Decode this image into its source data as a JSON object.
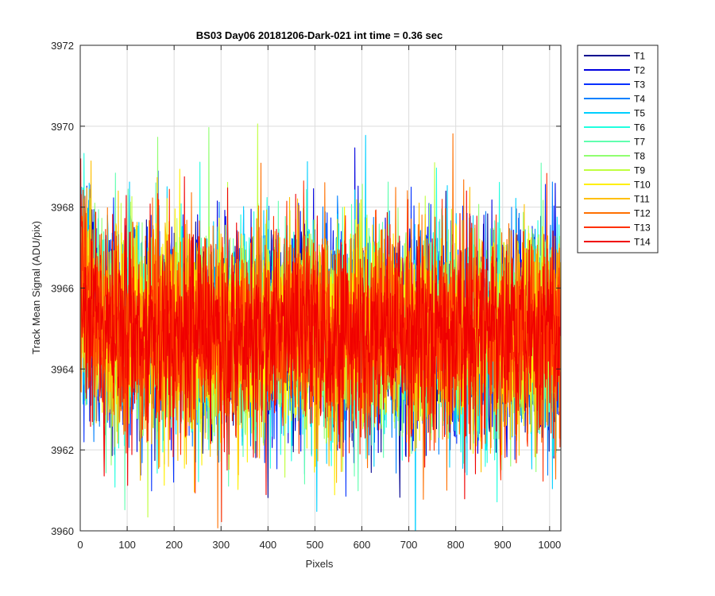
{
  "chart_data": {
    "type": "line",
    "title": "BS03 Day06 20181206-Dark-021 int time = 0.36 sec",
    "xlabel": "Pixels",
    "ylabel": "Track Mean Signal (ADU/pix)",
    "xlim": [
      0,
      1024
    ],
    "ylim": [
      3960,
      3972
    ],
    "xticks": [
      0,
      100,
      200,
      300,
      400,
      500,
      600,
      700,
      800,
      900,
      1000
    ],
    "yticks": [
      3960,
      3962,
      3964,
      3966,
      3968,
      3970,
      3972
    ],
    "grid": true,
    "legend_position": "outside-top-right",
    "noise_model": {
      "n_points": 1024,
      "mean": 3964.9,
      "std": 1.25,
      "early_pixel_excess": 1.4
    },
    "series": [
      {
        "name": "T1",
        "color": "#00008F"
      },
      {
        "name": "T2",
        "color": "#0000DF"
      },
      {
        "name": "T3",
        "color": "#0030FF"
      },
      {
        "name": "T4",
        "color": "#0080FF"
      },
      {
        "name": "T5",
        "color": "#00CFFF"
      },
      {
        "name": "T6",
        "color": "#20FFDF"
      },
      {
        "name": "T7",
        "color": "#60FFAF"
      },
      {
        "name": "T8",
        "color": "#90FF70"
      },
      {
        "name": "T9",
        "color": "#C0FF40"
      },
      {
        "name": "T10",
        "color": "#FFEF00"
      },
      {
        "name": "T11",
        "color": "#FFBF00"
      },
      {
        "name": "T12",
        "color": "#FF7000"
      },
      {
        "name": "T13",
        "color": "#FF3000"
      },
      {
        "name": "T14",
        "color": "#F00000"
      }
    ]
  }
}
